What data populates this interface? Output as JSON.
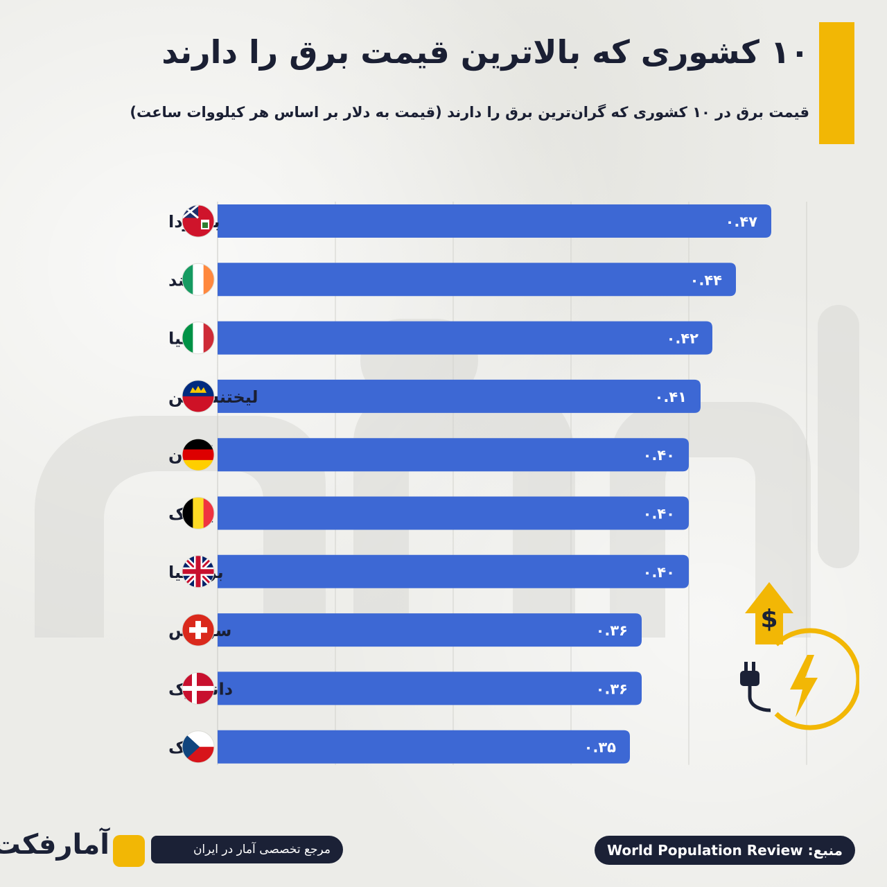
{
  "header": {
    "title": "۱۰ کشوری که بالاترین قیمت برق را دارند",
    "subtitle": "قیمت برق در ۱۰ کشوری که گران‌ترین برق را دارند (قیمت به دلار بر اساس هر کیلووات ساعت)"
  },
  "colors": {
    "bar": "#3d68d4",
    "accent": "#f2b705",
    "dark": "#1b2136",
    "background": "#ecece8"
  },
  "chart_data": {
    "type": "bar",
    "orientation": "horizontal",
    "title": "",
    "xlabel": "",
    "ylabel": "",
    "xlim": [
      0,
      0.5
    ],
    "grid": true,
    "categories": [
      "برمودا",
      "ایرلند",
      "ایتالیا",
      "لیختنشتاین",
      "آلمان",
      "بلژیک",
      "بریتانیا",
      "سوئیس",
      "دانمارک",
      "چک"
    ],
    "values": [
      0.47,
      0.44,
      0.42,
      0.41,
      0.4,
      0.4,
      0.4,
      0.36,
      0.36,
      0.35
    ],
    "value_labels": [
      "۰.۴۷",
      "۰.۴۴",
      "۰.۴۲",
      "۰.۴۱",
      "۰.۴۰",
      "۰.۴۰",
      "۰.۴۰",
      "۰.۳۶",
      "۰.۳۶",
      "۰.۳۵"
    ],
    "flag_icons": [
      "bermuda-flag-icon",
      "ireland-flag-icon",
      "italy-flag-icon",
      "liechtenstein-flag-icon",
      "germany-flag-icon",
      "belgium-flag-icon",
      "uk-flag-icon",
      "switzerland-flag-icon",
      "denmark-flag-icon",
      "czech-flag-icon"
    ]
  },
  "footer": {
    "source": "منبع: World Population Review",
    "tagline": "مرجع تخصصی آمار در ایران",
    "logo_text": "آمارفکت"
  },
  "icons": {
    "watermark": "logo-watermark-icon",
    "electricity": "electricity-price-up-icon"
  }
}
